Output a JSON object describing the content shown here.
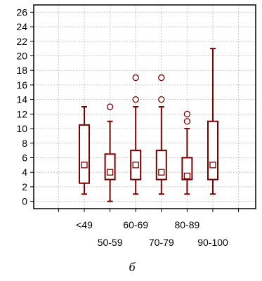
{
  "chart_data": {
    "type": "box",
    "categories": [
      "<49",
      "50-59",
      "60-69",
      "70-79",
      "80-89",
      "90-100"
    ],
    "boxes": [
      {
        "whisker_low": 1,
        "q1": 2.5,
        "median": 5,
        "q3": 10.5,
        "whisker_high": 13,
        "outliers": []
      },
      {
        "whisker_low": 0,
        "q1": 3,
        "median": 4,
        "q3": 6.5,
        "whisker_high": 11,
        "outliers": [
          13
        ]
      },
      {
        "whisker_low": 1,
        "q1": 3,
        "median": 5,
        "q3": 7,
        "whisker_high": 13,
        "outliers": [
          14,
          17
        ]
      },
      {
        "whisker_low": 1,
        "q1": 3,
        "median": 4,
        "q3": 7,
        "whisker_high": 13,
        "outliers": [
          14,
          17
        ]
      },
      {
        "whisker_low": 1,
        "q1": 3,
        "median": 3.5,
        "q3": 6,
        "whisker_high": 10,
        "outliers": [
          11,
          12
        ]
      },
      {
        "whisker_low": 1,
        "q1": 3,
        "median": 5,
        "q3": 11,
        "whisker_high": 21,
        "outliers": []
      }
    ],
    "yticks": [
      0,
      2,
      4,
      6,
      8,
      10,
      12,
      14,
      16,
      18,
      20,
      22,
      24,
      26
    ],
    "ylim": [
      -1,
      27
    ],
    "grid": true,
    "color": "#7a0000",
    "caption": "б"
  }
}
